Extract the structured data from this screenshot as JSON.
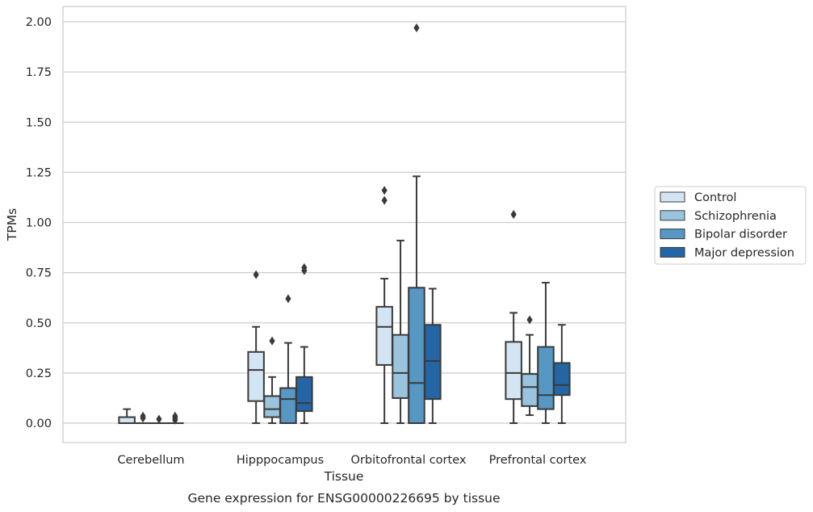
{
  "caption": "Gene expression for ENSG00000226695 by tissue",
  "chart_data": {
    "type": "box",
    "xlabel": "Tissue",
    "ylabel": "TPMs",
    "ylim": [
      -0.1,
      2.07
    ],
    "yticks": [
      "0.00",
      "0.25",
      "0.50",
      "0.75",
      "1.00",
      "1.25",
      "1.50",
      "1.75",
      "2.00"
    ],
    "grid": "horizontal",
    "legend_position": "right",
    "categories": [
      "Cerebellum",
      "Hipppocampus",
      "Orbitofrontal cortex",
      "Prefrontal cortex"
    ],
    "series": [
      {
        "name": "Control",
        "color": "#d3e4f2",
        "boxes": [
          {
            "whislo": 0.0,
            "q1": 0.0,
            "med": 0.0,
            "q3": 0.03,
            "whishi": 0.07,
            "fliers": []
          },
          {
            "whislo": 0.0,
            "q1": 0.11,
            "med": 0.265,
            "q3": 0.355,
            "whishi": 0.48,
            "fliers": [
              0.74
            ]
          },
          {
            "whislo": 0.0,
            "q1": 0.29,
            "med": 0.48,
            "q3": 0.58,
            "whishi": 0.72,
            "fliers": [
              1.11,
              1.16
            ]
          },
          {
            "whislo": 0.0,
            "q1": 0.12,
            "med": 0.25,
            "q3": 0.405,
            "whishi": 0.55,
            "fliers": [
              1.04
            ]
          }
        ]
      },
      {
        "name": "Schizophrenia",
        "color": "#9ac3de",
        "boxes": [
          {
            "whislo": 0.0,
            "q1": 0.0,
            "med": 0.0,
            "q3": 0.0,
            "whishi": 0.0,
            "fliers": [
              0.025,
              0.035
            ]
          },
          {
            "whislo": 0.0,
            "q1": 0.03,
            "med": 0.07,
            "q3": 0.135,
            "whishi": 0.23,
            "fliers": [
              0.41
            ]
          },
          {
            "whislo": 0.0,
            "q1": 0.125,
            "med": 0.25,
            "q3": 0.44,
            "whishi": 0.91,
            "fliers": []
          },
          {
            "whislo": 0.04,
            "q1": 0.085,
            "med": 0.18,
            "q3": 0.245,
            "whishi": 0.44,
            "fliers": [
              0.515
            ]
          }
        ]
      },
      {
        "name": "Bipolar disorder",
        "color": "#5697c4",
        "boxes": [
          {
            "whislo": 0.0,
            "q1": 0.0,
            "med": 0.0,
            "q3": 0.0,
            "whishi": 0.0,
            "fliers": [
              0.02
            ]
          },
          {
            "whislo": 0.0,
            "q1": 0.0,
            "med": 0.12,
            "q3": 0.175,
            "whishi": 0.4,
            "fliers": [
              0.62
            ]
          },
          {
            "whislo": 0.0,
            "q1": 0.0,
            "med": 0.2,
            "q3": 0.675,
            "whishi": 1.23,
            "fliers": [
              1.97
            ]
          },
          {
            "whislo": 0.0,
            "q1": 0.07,
            "med": 0.14,
            "q3": 0.38,
            "whishi": 0.7,
            "fliers": []
          }
        ]
      },
      {
        "name": "Major depression",
        "color": "#2465a6",
        "boxes": [
          {
            "whislo": 0.0,
            "q1": 0.0,
            "med": 0.0,
            "q3": 0.0,
            "whishi": 0.0,
            "fliers": [
              0.015,
              0.025,
              0.035
            ]
          },
          {
            "whislo": 0.0,
            "q1": 0.06,
            "med": 0.1,
            "q3": 0.23,
            "whishi": 0.38,
            "fliers": [
              0.76,
              0.775
            ]
          },
          {
            "whislo": 0.0,
            "q1": 0.12,
            "med": 0.31,
            "q3": 0.49,
            "whishi": 0.67,
            "fliers": []
          },
          {
            "whislo": 0.0,
            "q1": 0.14,
            "med": 0.19,
            "q3": 0.3,
            "whishi": 0.49,
            "fliers": []
          }
        ]
      }
    ]
  }
}
